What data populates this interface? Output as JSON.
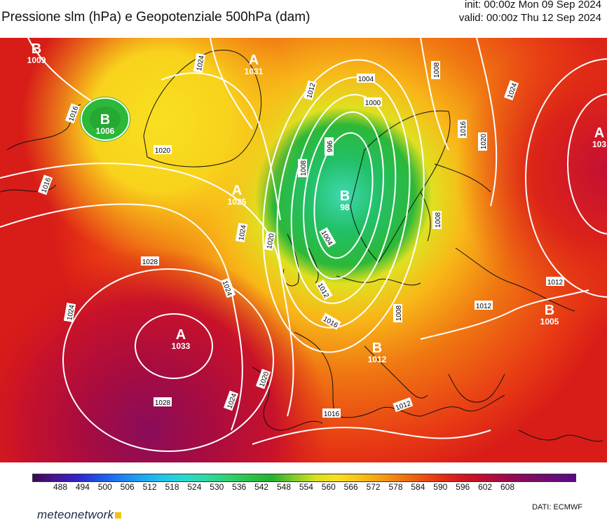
{
  "header": {
    "title": "Pressione slm (hPa) e Geopotenziale 500hPa (dam)",
    "init": "init: 00:00z Mon 09 Sep 2024",
    "valid": "valid: 00:00z Thu 12 Sep 2024"
  },
  "colorbar": {
    "ticks": [
      "488",
      "494",
      "500",
      "506",
      "512",
      "518",
      "524",
      "530",
      "536",
      "542",
      "548",
      "554",
      "560",
      "566",
      "572",
      "578",
      "584",
      "590",
      "596",
      "602",
      "608"
    ],
    "colors": [
      "#3b0a52",
      "#4a1490",
      "#3124c8",
      "#2050e8",
      "#1e7cf0",
      "#1ea6f0",
      "#22c6e8",
      "#2ad8d0",
      "#30d8a0",
      "#2ed270",
      "#2cc246",
      "#26b032",
      "#7ccc2a",
      "#d8e01e",
      "#f8e020",
      "#f8c418",
      "#f4a014",
      "#f07810",
      "#ec5010",
      "#e22a14",
      "#d01424",
      "#b80c3a",
      "#9a0a50",
      "#7c0c64",
      "#6a0c78",
      "#5a0a84"
    ]
  },
  "centers": [
    {
      "letter": "B",
      "value": "1009"
    },
    {
      "letter": "B",
      "value": "1006"
    },
    {
      "letter": "A",
      "value": "1031"
    },
    {
      "letter": "A",
      "value": "1025"
    },
    {
      "letter": "B",
      "value": "98"
    },
    {
      "letter": "A",
      "value": "1033"
    },
    {
      "letter": "A",
      "value": "103"
    },
    {
      "letter": "B",
      "value": "1005"
    },
    {
      "letter": "B",
      "value": "1012"
    }
  ],
  "isobar_labels": [
    "1016",
    "1024",
    "1004",
    "1008",
    "1012",
    "1000",
    "1020",
    "1024",
    "1016",
    "1020",
    "1016",
    "1008",
    "996",
    "1020",
    "1024",
    "1028",
    "1024",
    "1012",
    "1004",
    "1012",
    "1016",
    "1008",
    "1024",
    "1008",
    "1012",
    "1020",
    "1024",
    "1028",
    "1016",
    "1012"
  ],
  "footer": {
    "brand": "meteonetwork",
    "source": "DATI:  ECMWF"
  }
}
